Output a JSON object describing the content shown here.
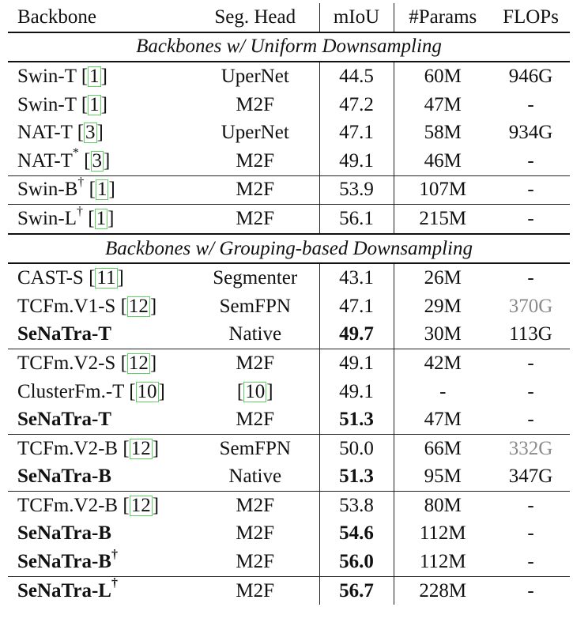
{
  "header": [
    "Backbone",
    "Seg. Head",
    "mIoU",
    "#Params",
    "FLOPs"
  ],
  "sections": [
    {
      "title": "Backbones w/ Uniform Downsampling",
      "rows": [
        {
          "name": "Swin-T",
          "sup": "",
          "cite": "1",
          "head": "UperNet",
          "miou": "44.5",
          "params": "60M",
          "flops": "946G",
          "bold": false,
          "flops_gray": false,
          "group_end": false
        },
        {
          "name": "Swin-T",
          "sup": "",
          "cite": "1",
          "head": "M2F",
          "miou": "47.2",
          "params": "47M",
          "flops": "-",
          "bold": false,
          "flops_gray": false,
          "group_end": false
        },
        {
          "name": "NAT-T",
          "sup": "",
          "cite": "3",
          "head": "UperNet",
          "miou": "47.1",
          "params": "58M",
          "flops": "934G",
          "bold": false,
          "flops_gray": false,
          "group_end": false
        },
        {
          "name": "NAT-T",
          "sup": "*",
          "cite": "3",
          "head": "M2F",
          "miou": "49.1",
          "params": "46M",
          "flops": "-",
          "bold": false,
          "flops_gray": false,
          "group_end": true
        },
        {
          "name": "Swin-B",
          "sup": "†",
          "cite": "1",
          "head": "M2F",
          "miou": "53.9",
          "params": "107M",
          "flops": "-",
          "bold": false,
          "flops_gray": false,
          "group_end": true
        },
        {
          "name": "Swin-L",
          "sup": "†",
          "cite": "1",
          "head": "M2F",
          "miou": "56.1",
          "params": "215M",
          "flops": "-",
          "bold": false,
          "flops_gray": false,
          "group_end": false
        }
      ]
    },
    {
      "title": "Backbones w/ Grouping-based Downsampling",
      "rows": [
        {
          "name": "CAST-S",
          "sup": "",
          "cite": "11",
          "head": "Segmenter",
          "miou": "43.1",
          "params": "26M",
          "flops": "-",
          "bold": false,
          "flops_gray": false,
          "group_end": false
        },
        {
          "name": "TCFm.V1-S",
          "sup": "",
          "cite": "12",
          "head": "SemFPN",
          "miou": "47.1",
          "params": "29M",
          "flops": "370G",
          "bold": false,
          "flops_gray": true,
          "group_end": false
        },
        {
          "name": "SeNaTra-T",
          "sup": "",
          "cite": "",
          "head": "Native",
          "miou": "49.7",
          "params": "30M",
          "flops": "113G",
          "bold": true,
          "flops_gray": false,
          "group_end": true
        },
        {
          "name": "TCFm.V2-S",
          "sup": "",
          "cite": "12",
          "head": "M2F",
          "miou": "49.1",
          "params": "42M",
          "flops": "-",
          "bold": false,
          "flops_gray": false,
          "group_end": false
        },
        {
          "name": "ClusterFm.-T",
          "sup": "",
          "cite": "10",
          "head": "[10]",
          "miou": "49.1",
          "params": "-",
          "flops": "-",
          "bold": false,
          "flops_gray": false,
          "group_end": false,
          "head_cite": true
        },
        {
          "name": "SeNaTra-T",
          "sup": "",
          "cite": "",
          "head": "M2F",
          "miou": "51.3",
          "params": "47M",
          "flops": "-",
          "bold": true,
          "flops_gray": false,
          "group_end": true
        },
        {
          "name": "TCFm.V2-B",
          "sup": "",
          "cite": "12",
          "head": "SemFPN",
          "miou": "50.0",
          "params": "66M",
          "flops": "332G",
          "bold": false,
          "flops_gray": true,
          "group_end": false
        },
        {
          "name": "SeNaTra-B",
          "sup": "",
          "cite": "",
          "head": "Native",
          "miou": "51.3",
          "params": "95M",
          "flops": "347G",
          "bold": true,
          "flops_gray": false,
          "group_end": true
        },
        {
          "name": "TCFm.V2-B",
          "sup": "",
          "cite": "12",
          "head": "M2F",
          "miou": "53.8",
          "params": "80M",
          "flops": "-",
          "bold": false,
          "flops_gray": false,
          "group_end": false
        },
        {
          "name": "SeNaTra-B",
          "sup": "",
          "cite": "",
          "head": "M2F",
          "miou": "54.6",
          "params": "112M",
          "flops": "-",
          "bold": true,
          "flops_gray": false,
          "group_end": false
        },
        {
          "name": "SeNaTra-B",
          "sup": "†",
          "cite": "",
          "head": "M2F",
          "miou": "56.0",
          "params": "112M",
          "flops": "-",
          "bold": true,
          "flops_gray": false,
          "group_end": true
        },
        {
          "name": "SeNaTra-L",
          "sup": "†",
          "cite": "",
          "head": "M2F",
          "miou": "56.7",
          "params": "228M",
          "flops": "-",
          "bold": true,
          "flops_gray": false,
          "group_end": false
        }
      ]
    }
  ]
}
